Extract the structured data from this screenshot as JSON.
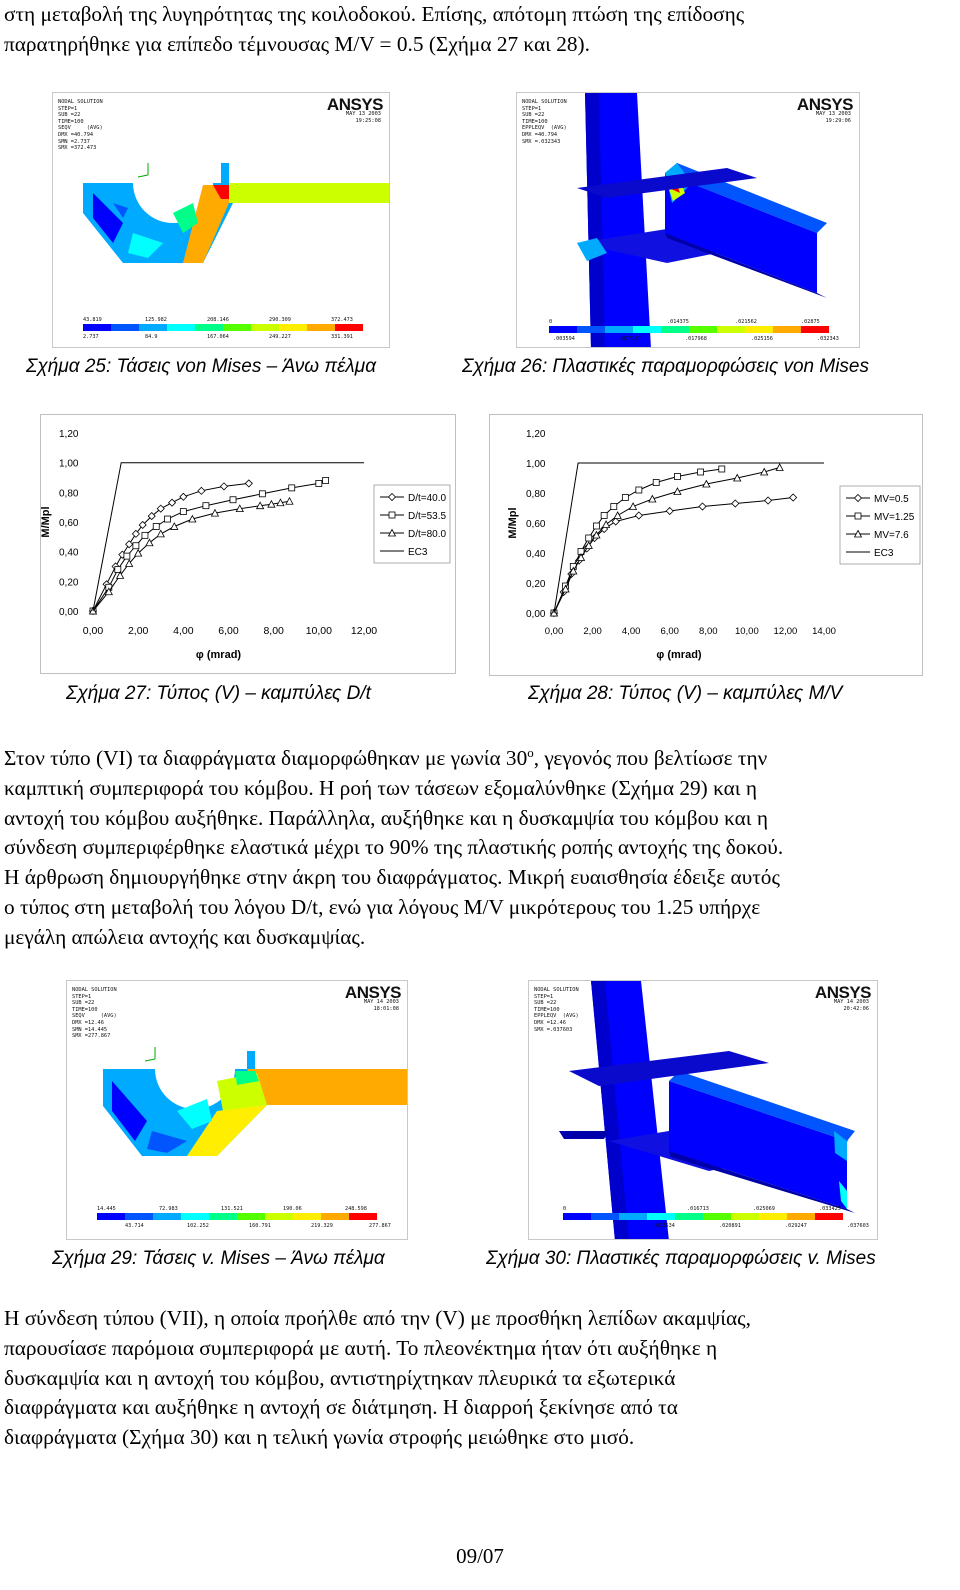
{
  "intro_text": {
    "line1": "στη μεταβολή της λυγηρότητας της κοιλοδοκού. Επίσης, απότομη πτώση της επίδοσης",
    "line2": "παρατηρήθηκε για επίπεδο τέμνουσας M/V = 0.5 (Σχήμα 27 και 28)."
  },
  "colors": {
    "contour": [
      "#0000ff",
      "#0055ff",
      "#00aaff",
      "#00ffff",
      "#00ff88",
      "#55ff00",
      "#ccff00",
      "#ffee00",
      "#ffaa00",
      "#ff0000"
    ],
    "series_line": "#000000"
  },
  "fig25": {
    "logo": "ANSYS",
    "info": "NODAL SOLUTION\nSTEP=1\nSUB =22\nTIME=100\nSEQV     (AVG)\nDMX =40.794\nSMN =2.737\nSMX =372.473",
    "date": "MAY 13 2003\n19:25:08",
    "labels_top": [
      "43.819",
      "125.982",
      "208.146",
      "290.309",
      "372.473"
    ],
    "labels_bottom": [
      "2.737",
      "84.9",
      "167.064",
      "249.227",
      "331.391"
    ],
    "caption": "Σχήμα 25: Τάσεις von Mises – Άνω πέλμα"
  },
  "fig26": {
    "logo": "ANSYS",
    "info": "NODAL SOLUTION\nSTEP=1\nSUB =22\nTIME=100\nEPPLEQV  (AVG)\nDMX =40.794\nSMX =.032343",
    "date": "MAY 13 2003\n19:29:06",
    "labels_top": [
      "0",
      ".014375",
      ".021562",
      ".02875"
    ],
    "labels_bottom": [
      ".003594",
      ".007187",
      ".017968",
      ".025156",
      ".032343"
    ],
    "caption": "Σχήμα 26: Πλαστικές παραμορφώσεις von Mises"
  },
  "fig27": {
    "caption": "Σχήμα 27: Τύπος (V) – καμπύλες D/t",
    "chart_data": {
      "type": "line",
      "title": "",
      "xlabel": "φ (mrad)",
      "ylabel": "M/Mpl",
      "xlim": [
        0,
        12
      ],
      "ylim": [
        0,
        1.2
      ],
      "x_ticks": [
        "0,00",
        "2,00",
        "4,00",
        "6,00",
        "8,00",
        "10,00",
        "12,00"
      ],
      "y_ticks": [
        "0,00",
        "0,20",
        "0,40",
        "0,60",
        "0,80",
        "1,00",
        "1,20"
      ],
      "legend_position": "right",
      "series": [
        {
          "name": "D/t=40.0",
          "marker": "diamond",
          "x": [
            0,
            0.6,
            1.0,
            1.3,
            1.6,
            1.9,
            2.2,
            2.6,
            3.0,
            3.5,
            4.0,
            4.8,
            5.8,
            6.9
          ],
          "y": [
            0,
            0.18,
            0.3,
            0.38,
            0.45,
            0.52,
            0.58,
            0.64,
            0.69,
            0.73,
            0.77,
            0.81,
            0.84,
            0.86
          ]
        },
        {
          "name": "D/t=53.5",
          "marker": "square",
          "x": [
            0,
            0.7,
            1.1,
            1.5,
            1.9,
            2.3,
            2.8,
            3.3,
            4.0,
            5.0,
            6.2,
            7.5,
            8.8,
            10.0,
            10.3
          ],
          "y": [
            0,
            0.16,
            0.28,
            0.37,
            0.44,
            0.51,
            0.57,
            0.62,
            0.67,
            0.71,
            0.75,
            0.79,
            0.83,
            0.86,
            0.88
          ]
        },
        {
          "name": "D/t=80.0",
          "marker": "triangle",
          "x": [
            0,
            0.7,
            1.2,
            1.6,
            2.0,
            2.5,
            3.0,
            3.6,
            4.4,
            5.4,
            6.5,
            7.4,
            7.9,
            8.3,
            8.7
          ],
          "y": [
            0,
            0.13,
            0.24,
            0.32,
            0.39,
            0.46,
            0.52,
            0.57,
            0.62,
            0.66,
            0.69,
            0.71,
            0.72,
            0.73,
            0.74
          ]
        },
        {
          "name": "EC3",
          "marker": "none",
          "x": [
            0,
            1.25,
            12.0
          ],
          "y": [
            0,
            1.0,
            1.0
          ]
        }
      ]
    }
  },
  "fig28": {
    "caption": "Σχήμα 28: Τύπος (V) – καμπύλες M/V",
    "chart_data": {
      "type": "line",
      "title": "",
      "xlabel": "φ (mrad)",
      "ylabel": "M/Mpl",
      "xlim": [
        0,
        14
      ],
      "ylim": [
        0,
        1.2
      ],
      "x_ticks": [
        "0,00",
        "2,00",
        "4,00",
        "6,00",
        "8,00",
        "10,00",
        "12,00",
        "14,00"
      ],
      "y_ticks": [
        "0,00",
        "0,20",
        "0,40",
        "0,60",
        "0,80",
        "1,00",
        "1,20"
      ],
      "legend_position": "right",
      "series": [
        {
          "name": "MV=0.5",
          "marker": "diamond",
          "x": [
            0,
            0.5,
            0.9,
            1.3,
            1.7,
            2.1,
            2.6,
            3.2,
            4.4,
            6.0,
            7.7,
            9.4,
            11.1,
            12.4
          ],
          "y": [
            0,
            0.14,
            0.26,
            0.35,
            0.43,
            0.5,
            0.56,
            0.61,
            0.65,
            0.68,
            0.71,
            0.73,
            0.75,
            0.77
          ]
        },
        {
          "name": "MV=1.25",
          "marker": "square",
          "x": [
            0,
            0.6,
            1.0,
            1.4,
            1.8,
            2.2,
            2.6,
            3.1,
            3.7,
            4.4,
            5.3,
            6.4,
            7.6,
            8.7
          ],
          "y": [
            0,
            0.18,
            0.31,
            0.41,
            0.5,
            0.58,
            0.65,
            0.71,
            0.77,
            0.82,
            0.87,
            0.91,
            0.94,
            0.96
          ]
        },
        {
          "name": "MV=7.6",
          "marker": "triangle",
          "x": [
            0,
            0.6,
            1.0,
            1.4,
            1.8,
            2.2,
            2.7,
            3.3,
            4.1,
            5.1,
            6.4,
            7.9,
            9.5,
            10.9,
            11.7
          ],
          "y": [
            0,
            0.16,
            0.28,
            0.37,
            0.45,
            0.52,
            0.59,
            0.65,
            0.71,
            0.76,
            0.81,
            0.86,
            0.9,
            0.94,
            0.97
          ]
        },
        {
          "name": "EC3",
          "marker": "none",
          "x": [
            0,
            1.25,
            14.0
          ],
          "y": [
            0,
            1.0,
            1.0
          ]
        }
      ]
    }
  },
  "middle_text": {
    "l1a": "Στον τύπο (VI) τα διαφράγματα διαμορφώθηκαν με γωνία 30",
    "l1sup": "ο",
    "l1b": ", γεγονός που βελτίωσε την",
    "l2": "καμπτική συμπεριφορά του κόμβου. Η ροή των τάσεων εξομαλύνθηκε (Σχήμα 29) και η",
    "l3": "αντοχή του κόμβου αυξήθηκε. Παράλληλα, αυξήθηκε και η δυσκαμψία του κόμβου και η",
    "l4": "σύνδεση συμπεριφέρθηκε ελαστικά μέχρι το 90% της πλαστικής ροπής αντοχής της δοκού.",
    "l5": "Η άρθρωση δημιουργήθηκε στην άκρη του διαφράγματος. Μικρή ευαισθησία έδειξε αυτός",
    "l6": "ο τύπος στη μεταβολή του λόγου D/t, ενώ για λόγους M/V μικρότερους του 1.25 υπήρχε",
    "l7": "μεγάλη απώλεια αντοχής και δυσκαμψίας."
  },
  "fig29": {
    "logo": "ANSYS",
    "info": "NODAL SOLUTION\nSTEP=1\nSUB =22\nTIME=100\nSEQV     (AVG)\nDMX =12.46\nSMN =14.445\nSMX =277.867",
    "date": "MAY 14 2003\n18:01:08",
    "labels_top": [
      "14.445",
      "72.983",
      "131.521",
      "190.06",
      "248.598"
    ],
    "labels_bottom": [
      "43.714",
      "102.252",
      "160.791",
      "219.329",
      "277.867"
    ],
    "caption": "Σχήμα 29: Τάσεις v. Mises – Άνω πέλμα"
  },
  "fig30": {
    "logo": "ANSYS",
    "info": "NODAL SOLUTION\nSTEP=1\nSUB =22\nTIME=100\nEPPLEQV  (AVG)\nDMX =12.46\nSMX =.037603",
    "date": "MAY 14 2003\n20:42:06",
    "labels_top": [
      "0",
      ".016713",
      ".025069",
      ".033425"
    ],
    "labels_bottom": [
      ".012534",
      ".020891",
      ".029247",
      ".037603"
    ],
    "caption": "Σχήμα 30: Πλαστικές παραμορφώσεις v. Mises"
  },
  "final_text": {
    "l1": "Η σύνδεση τύπου (VII), η οποία προήλθε από την (V) με προσθήκη λεπίδων ακαμψίας,",
    "l2": "παρουσίασε παρόμοια συμπεριφορά με αυτή. Το πλεονέκτημα ήταν ότι αυξήθηκε η",
    "l3": "δυσκαμψία και η αντοχή του κόμβου, αντιστηρίχτηκαν πλευρικά τα εξωτερικά",
    "l4": "διαφράγματα και αυξήθηκε η αντοχή σε διάτμηση. Η διαρροή ξεκίνησε από τα",
    "l5": "διαφράγματα (Σχήμα 30) και η τελική γωνία στροφής μειώθηκε στο μισό."
  },
  "footer": {
    "page": "09/07"
  }
}
